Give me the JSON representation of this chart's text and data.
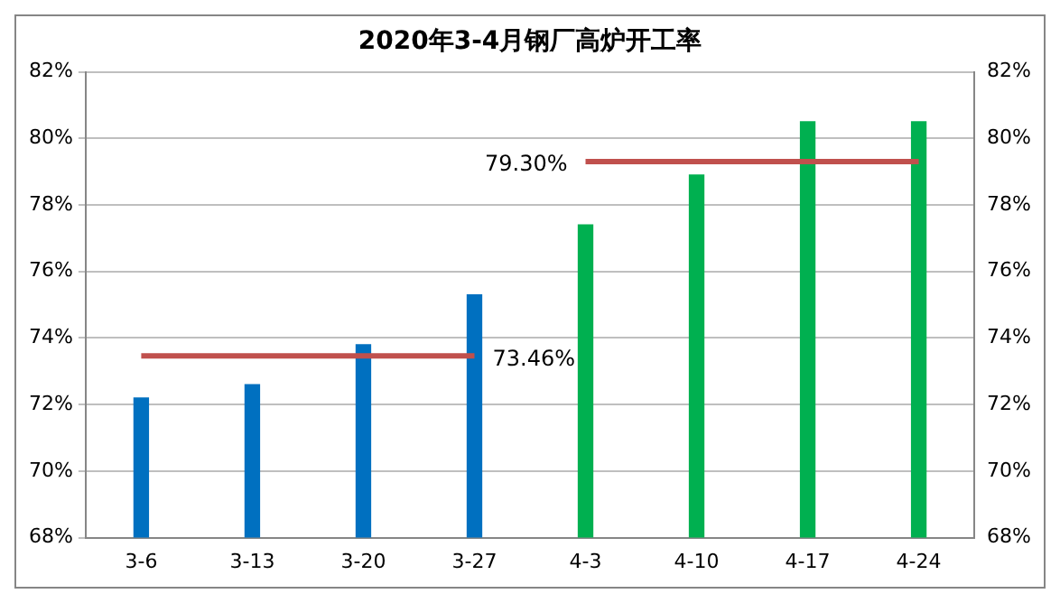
{
  "chart_data": {
    "type": "bar",
    "title": "2020年3-4月钢厂高炉开工率",
    "categories": [
      "3-6",
      "3-13",
      "3-20",
      "3-27",
      "4-3",
      "4-10",
      "4-17",
      "4-24"
    ],
    "series": [
      {
        "colors": [
          "#0070c0",
          "#0070c0",
          "#0070c0",
          "#0070c0",
          "#00b050",
          "#00b050",
          "#00b050",
          "#00b050"
        ],
        "values": [
          72.2,
          72.6,
          73.8,
          75.3,
          77.4,
          78.9,
          80.5,
          80.5
        ]
      },
      {
        "type": "line",
        "color": "#c0504d",
        "values": [
          73.46,
          73.46,
          73.46,
          73.46,
          null,
          null,
          null,
          null
        ],
        "value_labels": [
          null,
          null,
          null,
          "73.46%",
          null,
          null,
          null,
          null
        ]
      },
      {
        "type": "line",
        "color": "#c0504d",
        "values": [
          null,
          null,
          null,
          null,
          79.3,
          79.3,
          79.3,
          79.3
        ],
        "value_labels": [
          null,
          null,
          null,
          null,
          "79.30%",
          null,
          null,
          null
        ]
      }
    ],
    "ylim": [
      68,
      82
    ],
    "yticks": [
      {
        "value": 68,
        "label": "68%"
      },
      {
        "value": 70,
        "label": "70%"
      },
      {
        "value": 72,
        "label": "72%"
      },
      {
        "value": 74,
        "label": "74%"
      },
      {
        "value": 76,
        "label": "76%"
      },
      {
        "value": 78,
        "label": "78%"
      },
      {
        "value": 80,
        "label": "80%"
      },
      {
        "value": 82,
        "label": "82%"
      }
    ],
    "y2lim": [
      68,
      82
    ],
    "y2ticks": [
      {
        "value": 68,
        "label": "68%"
      },
      {
        "value": 70,
        "label": "70%"
      },
      {
        "value": 72,
        "label": "72%"
      },
      {
        "value": 74,
        "label": "74%"
      },
      {
        "value": 76,
        "label": "76%"
      },
      {
        "value": 78,
        "label": "78%"
      },
      {
        "value": 80,
        "label": "80%"
      },
      {
        "value": 82,
        "label": "82%"
      }
    ],
    "grid": "y",
    "legend": false,
    "marker": "none",
    "line_style": "solid"
  }
}
